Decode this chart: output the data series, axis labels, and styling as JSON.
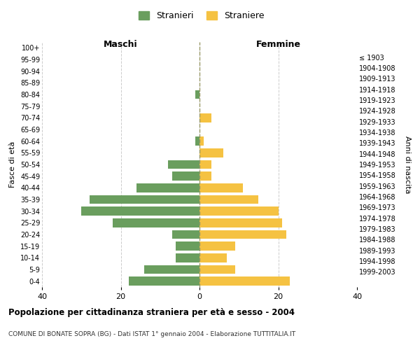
{
  "age_groups": [
    "0-4",
    "5-9",
    "10-14",
    "15-19",
    "20-24",
    "25-29",
    "30-34",
    "35-39",
    "40-44",
    "45-49",
    "50-54",
    "55-59",
    "60-64",
    "65-69",
    "70-74",
    "75-79",
    "80-84",
    "85-89",
    "90-94",
    "95-99",
    "100+"
  ],
  "birth_years": [
    "1999-2003",
    "1994-1998",
    "1989-1993",
    "1984-1988",
    "1979-1983",
    "1974-1978",
    "1969-1973",
    "1964-1968",
    "1959-1963",
    "1954-1958",
    "1949-1953",
    "1944-1948",
    "1939-1943",
    "1934-1938",
    "1929-1933",
    "1924-1928",
    "1919-1923",
    "1914-1918",
    "1909-1913",
    "1904-1908",
    "≤ 1903"
  ],
  "males": [
    18,
    14,
    6,
    6,
    7,
    22,
    30,
    28,
    16,
    7,
    8,
    0,
    1,
    0,
    0,
    0,
    1,
    0,
    0,
    0,
    0
  ],
  "females": [
    23,
    9,
    7,
    9,
    22,
    21,
    20,
    15,
    11,
    3,
    3,
    6,
    1,
    0,
    3,
    0,
    0,
    0,
    0,
    0,
    0
  ],
  "male_color": "#6a9e5e",
  "female_color": "#f5c242",
  "background_color": "#ffffff",
  "grid_color": "#cccccc",
  "title": "Popolazione per cittadinanza straniera per età e sesso - 2004",
  "subtitle": "COMUNE DI BONATE SOPRA (BG) - Dati ISTAT 1° gennaio 2004 - Elaborazione TUTTITALIA.IT",
  "xlabel_left": "Maschi",
  "xlabel_right": "Femmine",
  "ylabel_left": "Fasce di età",
  "ylabel_right": "Anni di nascita",
  "legend_male": "Stranieri",
  "legend_female": "Straniere",
  "xlim": 40,
  "bar_height": 0.75
}
